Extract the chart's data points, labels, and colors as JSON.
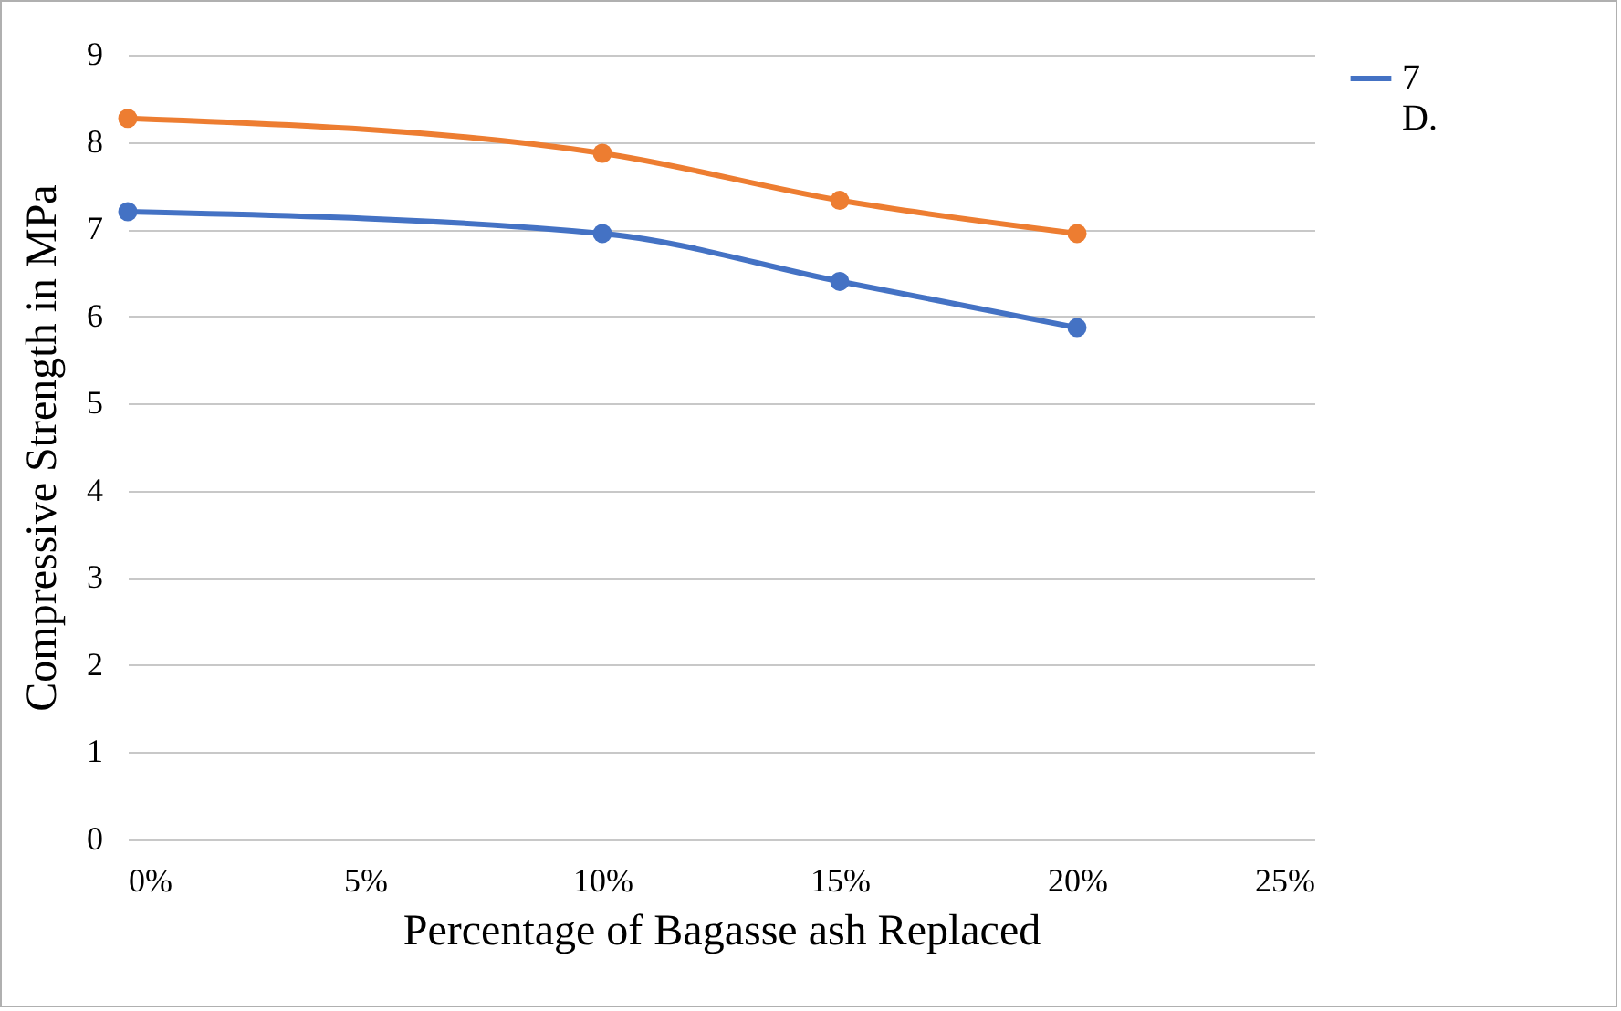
{
  "chart_data": {
    "type": "line",
    "xlabel": "Percentage of Bagasse ash Replaced",
    "ylabel": "Compressive Strength in MPa",
    "x": [
      0,
      10,
      15,
      20
    ],
    "series": [
      {
        "color": "#ed7d31",
        "values": [
          8.27,
          7.87,
          7.33,
          6.95
        ]
      },
      {
        "name": "7 D.",
        "color": "#4472c4",
        "values": [
          7.2,
          6.95,
          6.4,
          5.87
        ]
      }
    ],
    "xlim": [
      0,
      25
    ],
    "xticks": [
      {
        "value": 0,
        "label": "0%"
      },
      {
        "value": 5,
        "label": "5%"
      },
      {
        "value": 10,
        "label": "10%"
      },
      {
        "value": 15,
        "label": "15%"
      },
      {
        "value": 20,
        "label": "20%"
      },
      {
        "value": 25,
        "label": "25%"
      }
    ],
    "ylim": [
      0,
      9
    ],
    "yticks": [
      0,
      1,
      2,
      3,
      4,
      5,
      6,
      7,
      8,
      9
    ],
    "grid": "y",
    "legend": "right",
    "marker": "circle",
    "line_style": "solid"
  }
}
